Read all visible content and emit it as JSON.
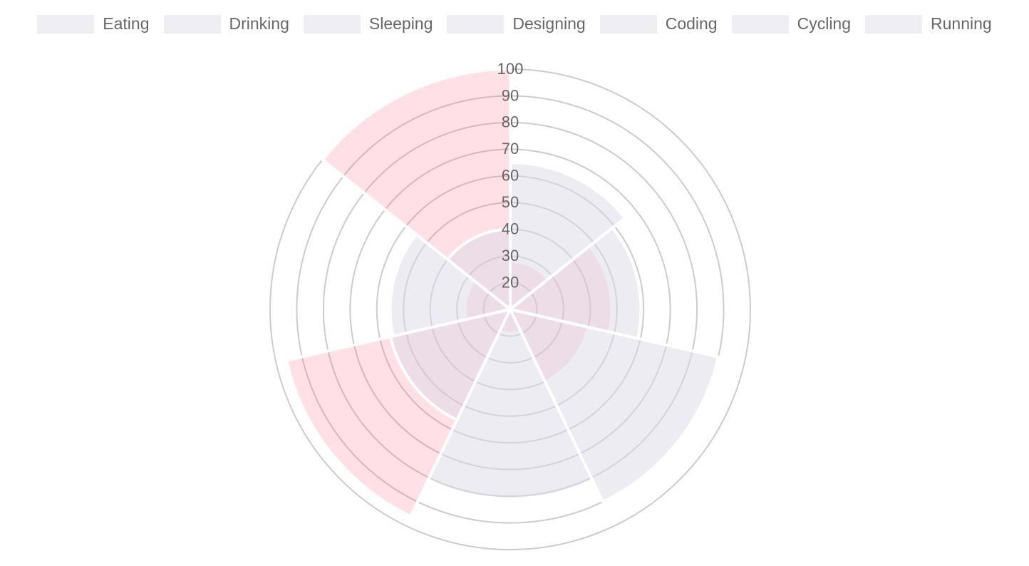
{
  "chart_data": {
    "type": "polarArea",
    "categories": [
      "Eating",
      "Drinking",
      "Sleeping",
      "Designing",
      "Coding",
      "Cycling",
      "Running"
    ],
    "series": [
      {
        "color": "rgba(255,99,132,0.2)",
        "values": [
          28,
          48,
          40,
          19,
          96,
          27,
          100
        ]
      },
      {
        "color": "rgba(220,218,230,0.5)",
        "values": [
          65,
          59,
          90,
          81,
          56,
          55,
          40
        ]
      }
    ],
    "legend_color": "#efeef3",
    "ylim": [
      10,
      100
    ],
    "yticks": [
      20,
      30,
      40,
      50,
      60,
      70,
      80,
      90,
      100
    ],
    "grid": true
  }
}
